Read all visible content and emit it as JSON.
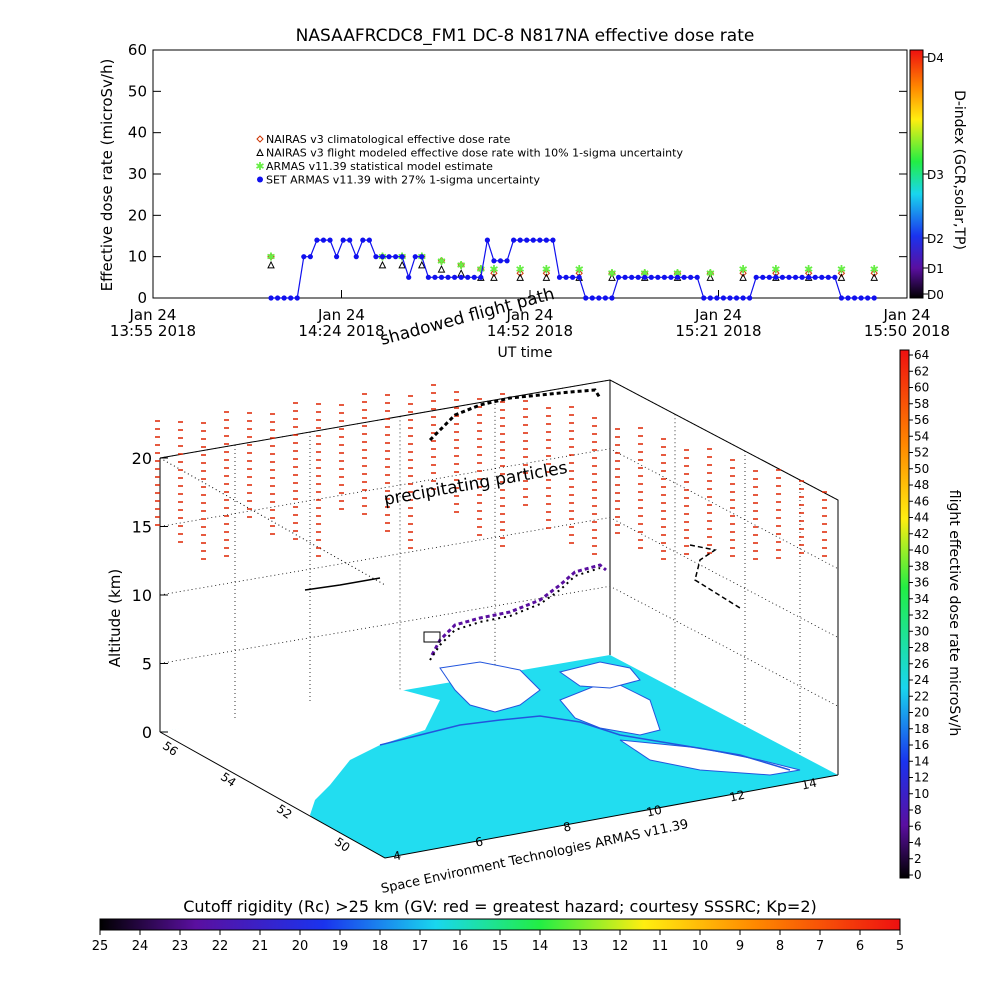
{
  "title": "NASAAFRCDC8_FM1 DC-8    N817NA effective dose rate",
  "top": {
    "ylabel": "Effective dose rate (microSv/h)",
    "xlabel": "UT time",
    "yticks": [
      "0",
      "10",
      "20",
      "30",
      "40",
      "50",
      "60"
    ],
    "xticks": [
      {
        "l1": "Jan 24",
        "l2": "13:55 2018"
      },
      {
        "l1": "Jan 24",
        "l2": "14:24 2018"
      },
      {
        "l1": "Jan 24",
        "l2": "14:52 2018"
      },
      {
        "l1": "Jan 24",
        "l2": "15:21 2018"
      },
      {
        "l1": "Jan 24",
        "l2": "15:50 2018"
      }
    ],
    "legend": [
      "NAIRAS v3 climatological effective dose rate",
      "NAIRAS v3 flight modeled effective dose rate with 10% 1-sigma uncertainty",
      "ARMAS v11.39 statistical model estimate",
      "SET ARMAS v11.39 with 27% 1-sigma uncertainty"
    ],
    "dindex_label": "D-index (GCR,solar,TP)",
    "dindex_ticks": [
      "D0",
      "D1",
      "D2",
      "D3",
      "D4"
    ]
  },
  "bottom": {
    "annotations": {
      "shadowed": "shadowed flight path",
      "precip": "precipitating particles",
      "credit": "Space Environment Technologies ARMAS v11.39"
    },
    "zlabel": "Altitude (km)",
    "zticks": [
      "0",
      "5",
      "10",
      "15",
      "20"
    ],
    "lon_ticks": [
      "4",
      "6",
      "8",
      "10",
      "12",
      "14"
    ],
    "lat_ticks": [
      "50",
      "52",
      "54",
      "56"
    ],
    "right_bar_label": "flight effective dose rate microSv/h",
    "right_bar_ticks": [
      "0",
      "2",
      "4",
      "6",
      "8",
      "10",
      "12",
      "14",
      "16",
      "18",
      "20",
      "22",
      "24",
      "26",
      "28",
      "30",
      "32",
      "34",
      "36",
      "38",
      "40",
      "42",
      "44",
      "46",
      "48",
      "50",
      "52",
      "54",
      "56",
      "58",
      "60",
      "62",
      "64"
    ],
    "cutoff_label": "Cutoff rigidity (Rc) >25 km (GV: red = greatest hazard; courtesy SSSRC; Kp=2)",
    "cutoff_ticks": [
      "25",
      "24",
      "23",
      "22",
      "21",
      "20",
      "19",
      "18",
      "17",
      "16",
      "15",
      "14",
      "13",
      "12",
      "11",
      "10",
      "9",
      "8",
      "7",
      "6",
      "5"
    ]
  },
  "colors": {
    "nairas_clim": "#cc3300",
    "nairas_flight": "#000000",
    "armas_stat": "#66ee44",
    "set_armas": "#1010ee",
    "ocean": "#22ddf0",
    "coast": "#2255dd",
    "rc_marks": "#dd2200"
  },
  "chart_data": {
    "type": "line",
    "x_unit": "UT minutes after 13:55 on Jan 24 2018",
    "xlim": [
      0,
      115
    ],
    "ylim": [
      0,
      60
    ],
    "series": [
      {
        "name": "NAIRAS v3 climatological effective dose rate",
        "x": [
          18,
          35,
          38,
          41,
          44,
          47,
          50,
          52,
          56,
          60,
          65,
          70,
          75,
          80,
          85,
          90,
          95,
          100,
          105,
          110
        ],
        "y": [
          10,
          10,
          10,
          10,
          9,
          8,
          7,
          6,
          6,
          6,
          6,
          6,
          6,
          6,
          6,
          6,
          6,
          6,
          6,
          6
        ]
      },
      {
        "name": "NAIRAS v3 flight modeled effective dose rate with 10% 1-sigma uncertainty",
        "x": [
          18,
          35,
          38,
          41,
          44,
          47,
          50,
          52,
          56,
          60,
          65,
          70,
          75,
          80,
          85,
          90,
          95,
          100,
          105,
          110
        ],
        "y": [
          8,
          8,
          8,
          8,
          7,
          6,
          5,
          5,
          5,
          5,
          5,
          5,
          5,
          5,
          5,
          5,
          5,
          5,
          5,
          5
        ]
      },
      {
        "name": "ARMAS v11.39 statistical model estimate",
        "x": [
          18,
          35,
          38,
          41,
          44,
          47,
          50,
          52,
          56,
          60,
          65,
          70,
          75,
          80,
          85,
          90,
          95,
          100,
          105,
          110
        ],
        "y": [
          10,
          10,
          10,
          10,
          9,
          8,
          7,
          7,
          7,
          7,
          7,
          6,
          6,
          6,
          6,
          7,
          7,
          7,
          7,
          7
        ]
      },
      {
        "name": "SET ARMAS v11.39 with 27% 1-sigma uncertainty",
        "x": [
          18,
          19,
          20,
          21,
          22,
          23,
          24,
          25,
          26,
          27,
          28,
          29,
          30,
          31,
          32,
          33,
          34,
          35,
          36,
          37,
          38,
          39,
          40,
          41,
          42,
          43,
          44,
          45,
          46,
          47,
          48,
          49,
          50,
          51,
          52,
          53,
          54,
          55,
          56,
          57,
          58,
          59,
          60,
          61,
          62,
          63,
          64,
          65,
          66,
          67,
          68,
          69,
          70,
          71,
          72,
          73,
          74,
          75,
          76,
          77,
          78,
          79,
          80,
          81,
          82,
          83,
          84,
          85,
          86,
          87,
          88,
          89,
          90,
          91,
          92,
          93,
          94,
          95,
          96,
          97,
          98,
          99,
          100,
          101,
          102,
          103,
          104,
          105,
          106,
          107,
          108,
          109,
          110
        ],
        "y": [
          0,
          0,
          0,
          0,
          0,
          10,
          10,
          14,
          14,
          14,
          10,
          14,
          14,
          10,
          14,
          14,
          10,
          10,
          10,
          10,
          10,
          5,
          10,
          10,
          5,
          5,
          5,
          5,
          5,
          5,
          5,
          5,
          5,
          14,
          9,
          9,
          9,
          14,
          14,
          14,
          14,
          14,
          14,
          14,
          5,
          5,
          5,
          5,
          0,
          0,
          0,
          0,
          0,
          5,
          5,
          5,
          5,
          5,
          5,
          5,
          5,
          5,
          5,
          5,
          5,
          5,
          0,
          0,
          0,
          0,
          0,
          0,
          0,
          0,
          5,
          5,
          5,
          5,
          5,
          5,
          5,
          5,
          5,
          5,
          5,
          5,
          5,
          0,
          0,
          0,
          0,
          0,
          0
        ]
      }
    ]
  }
}
